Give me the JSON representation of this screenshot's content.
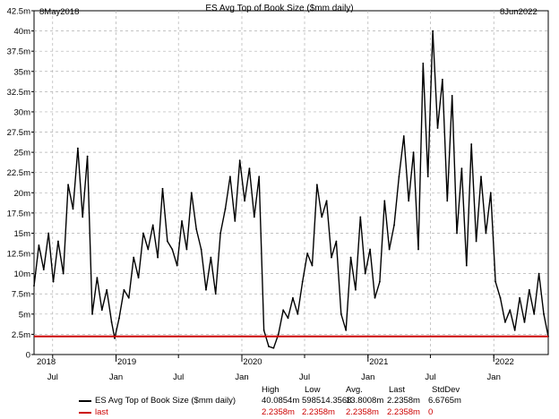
{
  "chart_data": {
    "type": "line",
    "title": "ES Avg Top of Book Size ($mm daily)",
    "start_label": "8May2018",
    "end_label": "8Jun2022",
    "x_range": [
      "2018-05-08",
      "2022-06-08"
    ],
    "ylim": [
      0,
      42.5
    ],
    "y_ticks": [
      "0",
      "2.5m",
      "5m",
      "7.5m",
      "10m",
      "12.5m",
      "15m",
      "17.5m",
      "20m",
      "22.5m",
      "25m",
      "27.5m",
      "30m",
      "32.5m",
      "35m",
      "37.5m",
      "40m",
      "42.5m"
    ],
    "x_ticks": [
      {
        "label": "Jul",
        "date": "2018-07-01",
        "year": false
      },
      {
        "label": "Jan",
        "date": "2019-01-01",
        "year": false
      },
      {
        "label": "Jul",
        "date": "2019-07-01",
        "year": false
      },
      {
        "label": "Jan",
        "date": "2020-01-01",
        "year": false
      },
      {
        "label": "Jul",
        "date": "2020-07-01",
        "year": false
      },
      {
        "label": "Jan",
        "date": "2021-01-01",
        "year": false
      },
      {
        "label": "Jul",
        "date": "2021-07-01",
        "year": false
      },
      {
        "label": "Jan",
        "date": "2022-01-01",
        "year": false
      }
    ],
    "year_labels": [
      {
        "label": "2018",
        "date": "2018-05-08"
      },
      {
        "label": "2019",
        "date": "2019-01-01"
      },
      {
        "label": "2020",
        "date": "2020-01-01"
      },
      {
        "label": "2021",
        "date": "2021-01-01"
      },
      {
        "label": "2022",
        "date": "2022-01-01"
      }
    ],
    "grid": true,
    "series": [
      {
        "name": "ES Avg Top of Book Size ($mm daily)",
        "color": "#000000",
        "points": [
          [
            "2018-05-08",
            8.5
          ],
          [
            "2018-05-22",
            13.5
          ],
          [
            "2018-06-05",
            10.5
          ],
          [
            "2018-06-19",
            15.0
          ],
          [
            "2018-07-03",
            9.0
          ],
          [
            "2018-07-17",
            14.0
          ],
          [
            "2018-08-01",
            10.0
          ],
          [
            "2018-08-15",
            21.0
          ],
          [
            "2018-08-29",
            18.0
          ],
          [
            "2018-09-12",
            25.5
          ],
          [
            "2018-09-26",
            17.0
          ],
          [
            "2018-10-10",
            24.5
          ],
          [
            "2018-10-24",
            5.0
          ],
          [
            "2018-11-07",
            9.5
          ],
          [
            "2018-11-21",
            5.5
          ],
          [
            "2018-12-05",
            8.0
          ],
          [
            "2018-12-19",
            4.0
          ],
          [
            "2018-12-28",
            2.0
          ],
          [
            "2019-01-10",
            4.5
          ],
          [
            "2019-01-24",
            8.0
          ],
          [
            "2019-02-07",
            7.0
          ],
          [
            "2019-02-21",
            12.0
          ],
          [
            "2019-03-07",
            9.5
          ],
          [
            "2019-03-21",
            15.0
          ],
          [
            "2019-04-04",
            13.0
          ],
          [
            "2019-04-18",
            16.0
          ],
          [
            "2019-05-02",
            12.0
          ],
          [
            "2019-05-16",
            20.5
          ],
          [
            "2019-05-30",
            14.0
          ],
          [
            "2019-06-13",
            13.0
          ],
          [
            "2019-06-27",
            11.0
          ],
          [
            "2019-07-11",
            16.5
          ],
          [
            "2019-07-25",
            13.0
          ],
          [
            "2019-08-08",
            20.0
          ],
          [
            "2019-08-22",
            15.5
          ],
          [
            "2019-09-05",
            13.0
          ],
          [
            "2019-09-19",
            8.0
          ],
          [
            "2019-10-03",
            12.0
          ],
          [
            "2019-10-17",
            7.5
          ],
          [
            "2019-10-31",
            15.0
          ],
          [
            "2019-11-14",
            18.0
          ],
          [
            "2019-11-28",
            22.0
          ],
          [
            "2019-12-12",
            16.5
          ],
          [
            "2019-12-26",
            24.0
          ],
          [
            "2020-01-09",
            19.0
          ],
          [
            "2020-01-23",
            23.0
          ],
          [
            "2020-02-06",
            17.0
          ],
          [
            "2020-02-20",
            22.0
          ],
          [
            "2020-03-05",
            3.0
          ],
          [
            "2020-03-19",
            1.0
          ],
          [
            "2020-04-02",
            0.8
          ],
          [
            "2020-04-16",
            2.5
          ],
          [
            "2020-04-30",
            5.5
          ],
          [
            "2020-05-14",
            4.5
          ],
          [
            "2020-05-28",
            7.0
          ],
          [
            "2020-06-11",
            5.0
          ],
          [
            "2020-06-25",
            9.0
          ],
          [
            "2020-07-09",
            12.5
          ],
          [
            "2020-07-23",
            11.0
          ],
          [
            "2020-08-06",
            21.0
          ],
          [
            "2020-08-20",
            17.0
          ],
          [
            "2020-09-03",
            19.0
          ],
          [
            "2020-09-17",
            12.0
          ],
          [
            "2020-10-01",
            14.0
          ],
          [
            "2020-10-15",
            5.0
          ],
          [
            "2020-10-29",
            3.0
          ],
          [
            "2020-11-12",
            12.0
          ],
          [
            "2020-11-26",
            8.0
          ],
          [
            "2020-12-10",
            17.0
          ],
          [
            "2020-12-24",
            10.0
          ],
          [
            "2021-01-07",
            13.0
          ],
          [
            "2021-01-21",
            7.0
          ],
          [
            "2021-02-04",
            9.0
          ],
          [
            "2021-02-18",
            19.0
          ],
          [
            "2021-03-04",
            13.0
          ],
          [
            "2021-03-18",
            16.0
          ],
          [
            "2021-04-01",
            22.0
          ],
          [
            "2021-04-15",
            27.0
          ],
          [
            "2021-04-29",
            19.0
          ],
          [
            "2021-05-13",
            25.0
          ],
          [
            "2021-05-27",
            13.0
          ],
          [
            "2021-06-10",
            36.0
          ],
          [
            "2021-06-24",
            22.0
          ],
          [
            "2021-07-08",
            40.0
          ],
          [
            "2021-07-22",
            28.0
          ],
          [
            "2021-08-05",
            34.0
          ],
          [
            "2021-08-19",
            19.0
          ],
          [
            "2021-09-02",
            32.0
          ],
          [
            "2021-09-16",
            15.0
          ],
          [
            "2021-09-30",
            23.0
          ],
          [
            "2021-10-14",
            11.0
          ],
          [
            "2021-10-28",
            26.0
          ],
          [
            "2021-11-11",
            14.0
          ],
          [
            "2021-11-25",
            22.0
          ],
          [
            "2021-12-09",
            15.0
          ],
          [
            "2021-12-23",
            20.0
          ],
          [
            "2022-01-06",
            9.0
          ],
          [
            "2022-01-20",
            7.0
          ],
          [
            "2022-02-03",
            4.0
          ],
          [
            "2022-02-17",
            5.5
          ],
          [
            "2022-03-03",
            3.0
          ],
          [
            "2022-03-17",
            7.0
          ],
          [
            "2022-03-31",
            4.0
          ],
          [
            "2022-04-14",
            8.0
          ],
          [
            "2022-04-28",
            5.0
          ],
          [
            "2022-05-12",
            10.0
          ],
          [
            "2022-05-26",
            5.0
          ],
          [
            "2022-06-08",
            2.2358
          ]
        ]
      },
      {
        "name": "last",
        "color": "#cc0000",
        "constant": 2.2358
      }
    ],
    "stats": {
      "headers": [
        "High",
        "Low",
        "Avg.",
        "Last",
        "StdDev"
      ],
      "rows": [
        {
          "name": "ES Avg Top of Book Size ($mm daily)",
          "color": "#000000",
          "values": [
            "40.0854m",
            "598514.3568",
            "13.8008m",
            "2.2358m",
            "6.6765m"
          ]
        },
        {
          "name": "last",
          "color": "#cc0000",
          "values": [
            "2.2358m",
            "2.2358m",
            "2.2358m",
            "2.2358m",
            "0"
          ]
        }
      ]
    }
  }
}
